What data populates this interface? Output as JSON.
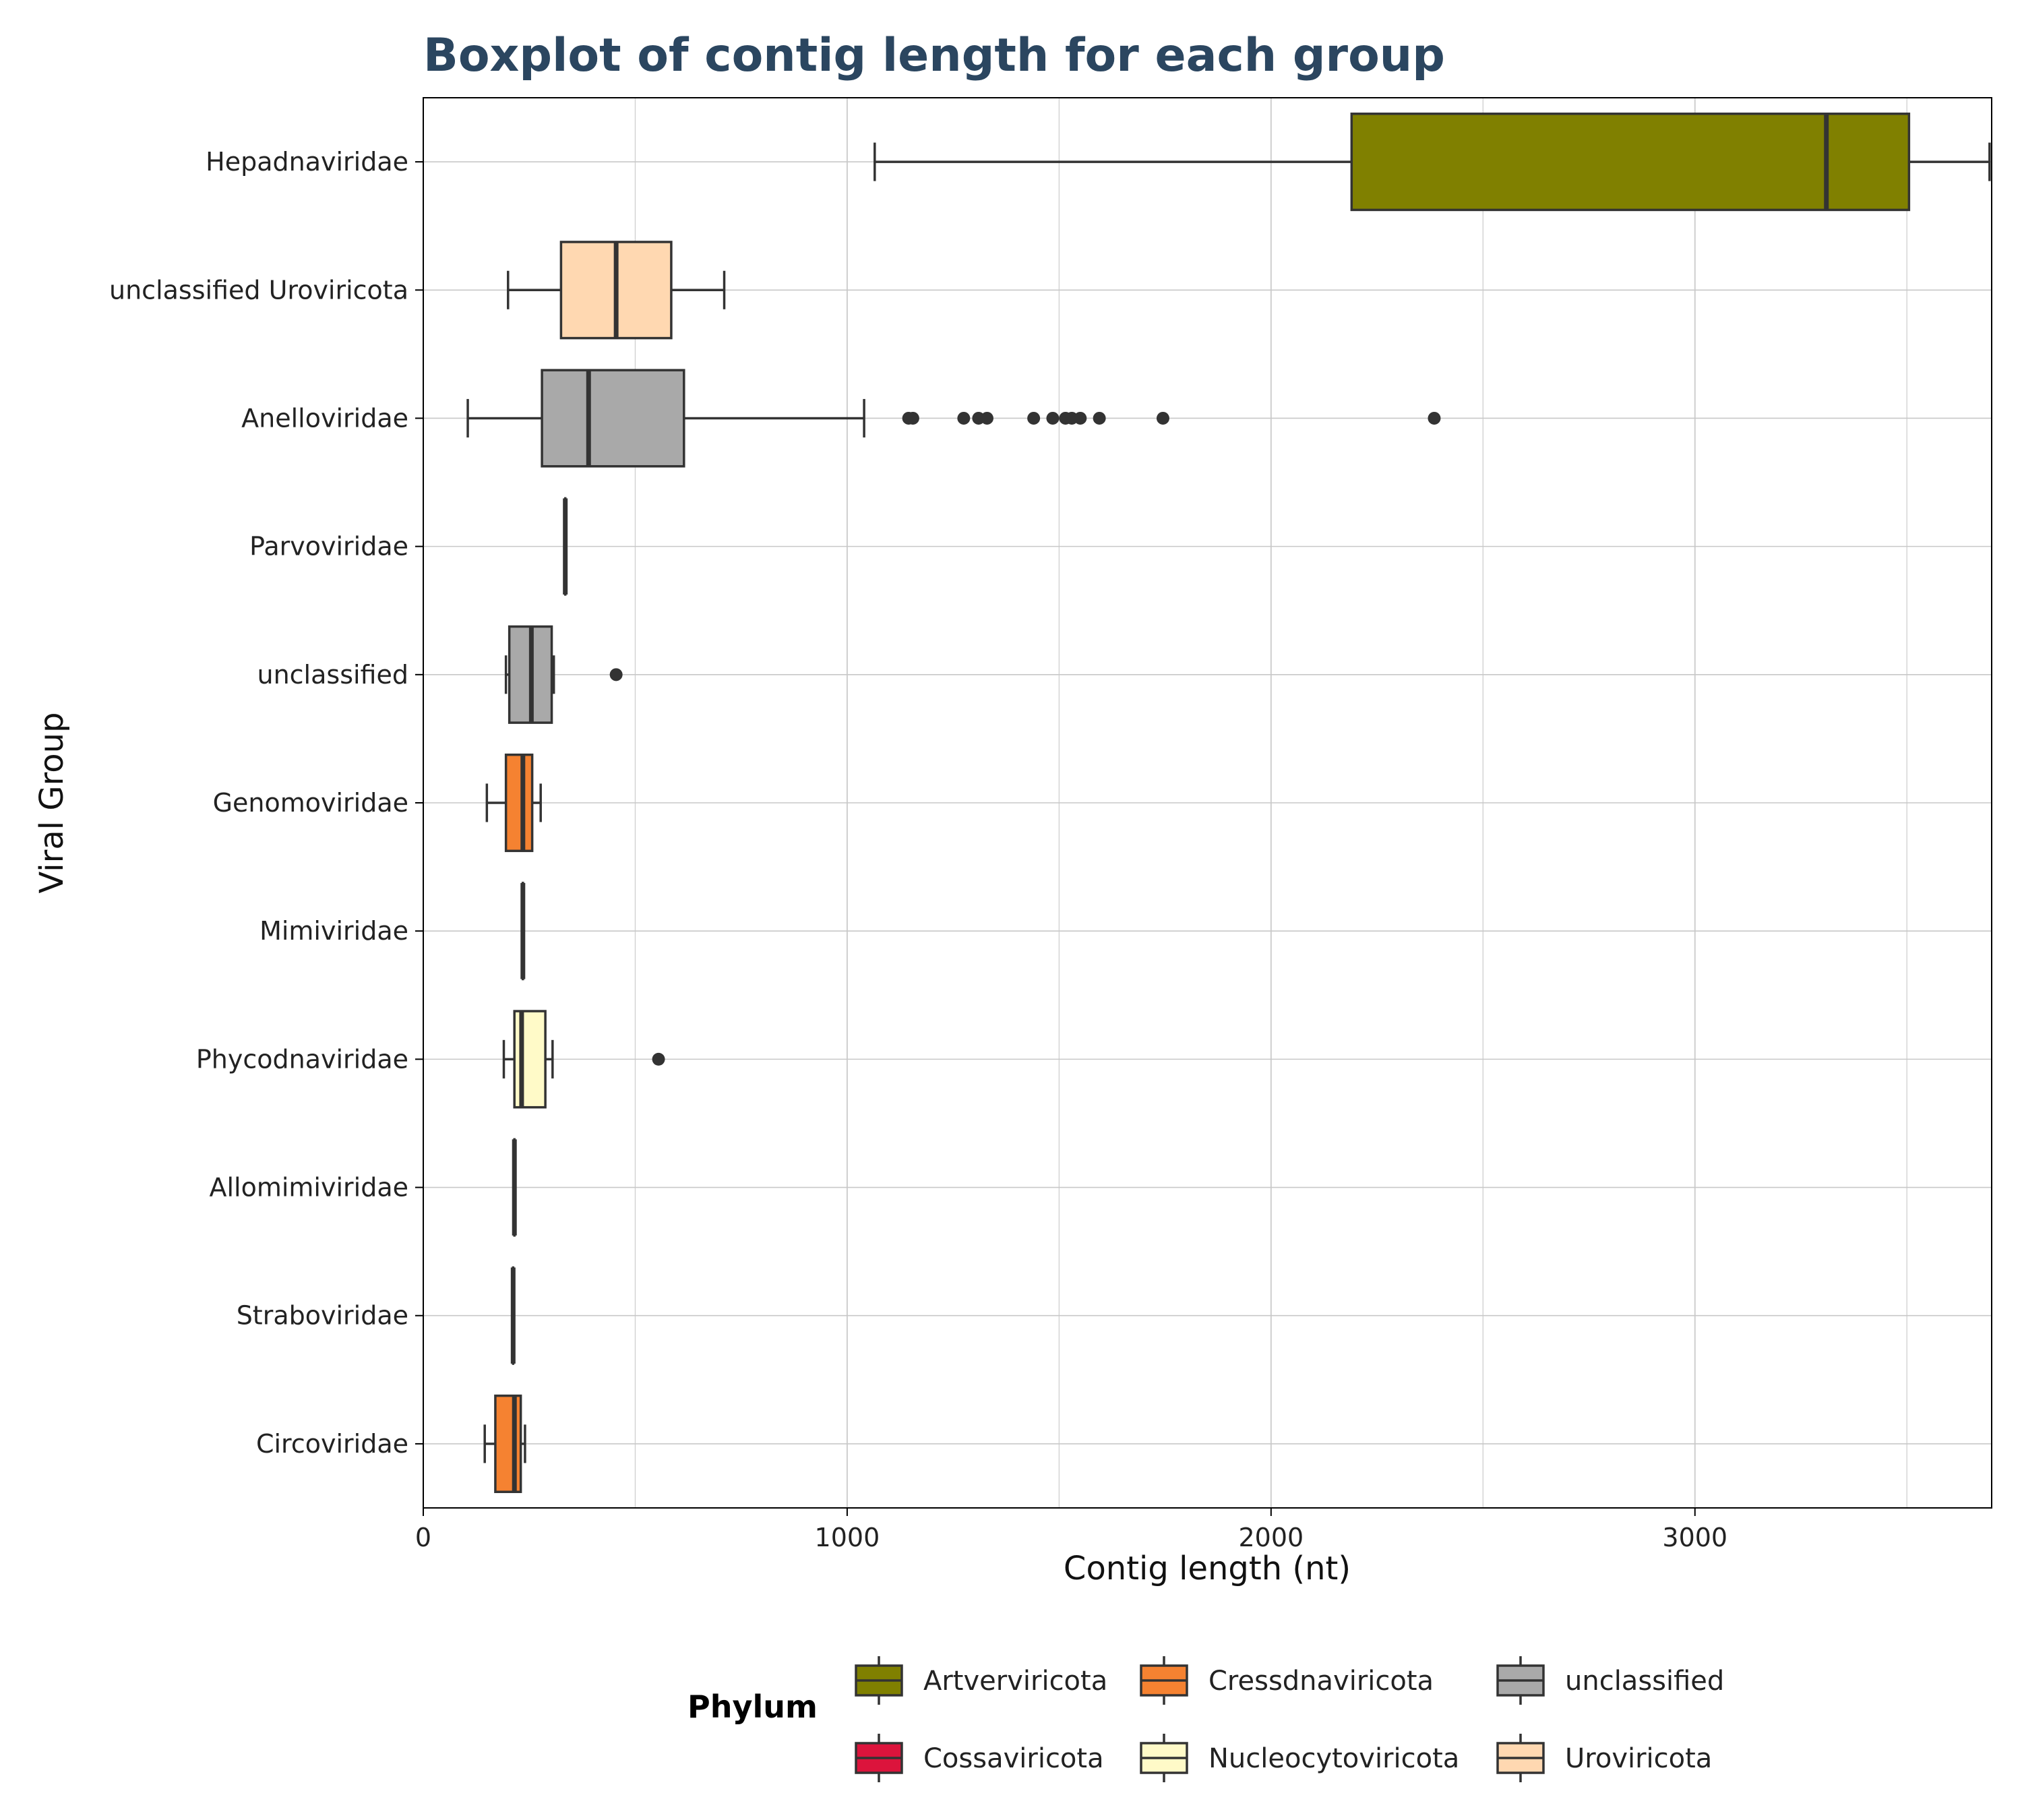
{
  "chart_data": {
    "type": "boxplot",
    "title": "Boxplot of contig length for each group",
    "xlabel": "Contig length (nt)",
    "ylabel": "Viral Group",
    "xlim": [
      0,
      3700
    ],
    "xticks": [
      0,
      1000,
      2000,
      3000
    ],
    "grid": true,
    "orientation": "horizontal",
    "legend": {
      "title": "Phylum",
      "position": "bottom",
      "items": [
        {
          "label": "Artverviricota",
          "color": "#808000"
        },
        {
          "label": "Cossaviricota",
          "color": "#dc143c"
        },
        {
          "label": "Cressdnaviricota",
          "color": "#f58231"
        },
        {
          "label": "Nucleocytoviricota",
          "color": "#fffac8"
        },
        {
          "label": "unclassified",
          "color": "#a9a9a9"
        },
        {
          "label": "Uroviricota",
          "color": "#ffd8b1"
        }
      ]
    },
    "groups": [
      {
        "name": "Hepadnaviridae",
        "phylum": "Artverviricota",
        "color": "#808000",
        "whisker_low": 1065,
        "q1": 2190,
        "median": 3310,
        "q3": 3505,
        "whisker_high": 3695,
        "outliers": []
      },
      {
        "name": "unclassified Uroviricota",
        "phylum": "Uroviricota",
        "color": "#ffd8b1",
        "whisker_low": 200,
        "q1": 325,
        "median": 455,
        "q3": 585,
        "whisker_high": 710,
        "outliers": []
      },
      {
        "name": "Anelloviridae",
        "phylum": "unclassified",
        "color": "#a9a9a9",
        "whisker_low": 105,
        "q1": 280,
        "median": 390,
        "q3": 615,
        "whisker_high": 1040,
        "outliers": [
          1145,
          1155,
          1275,
          1310,
          1330,
          1440,
          1485,
          1515,
          1530,
          1550,
          1595,
          1745,
          2385
        ]
      },
      {
        "name": "Parvoviridae",
        "phylum": "Cossaviricota",
        "color": "#dc143c",
        "whisker_low": 335,
        "q1": 335,
        "median": 335,
        "q3": 335,
        "whisker_high": 335,
        "outliers": []
      },
      {
        "name": "unclassified",
        "phylum": "unclassified",
        "color": "#a9a9a9",
        "whisker_low": 195,
        "q1": 203,
        "median": 255,
        "q3": 303,
        "whisker_high": 308,
        "outliers": [
          455
        ]
      },
      {
        "name": "Genomoviridae",
        "phylum": "Cressdnaviricota",
        "color": "#f58231",
        "whisker_low": 150,
        "q1": 195,
        "median": 235,
        "q3": 257,
        "whisker_high": 277,
        "outliers": []
      },
      {
        "name": "Mimiviridae",
        "phylum": "Nucleocytoviricota",
        "color": "#fffac8",
        "whisker_low": 235,
        "q1": 235,
        "median": 235,
        "q3": 235,
        "whisker_high": 235,
        "outliers": []
      },
      {
        "name": "Phycodnaviridae",
        "phylum": "Nucleocytoviricota",
        "color": "#fffac8",
        "whisker_low": 190,
        "q1": 215,
        "median": 232,
        "q3": 288,
        "whisker_high": 305,
        "outliers": [
          555
        ]
      },
      {
        "name": "Allomimiviridae",
        "phylum": "Nucleocytoviricota",
        "color": "#fffac8",
        "whisker_low": 215,
        "q1": 215,
        "median": 215,
        "q3": 215,
        "whisker_high": 215,
        "outliers": []
      },
      {
        "name": "Straboviridae",
        "phylum": "Uroviricota",
        "color": "#ffd8b1",
        "whisker_low": 212,
        "q1": 212,
        "median": 212,
        "q3": 212,
        "whisker_high": 212,
        "outliers": []
      },
      {
        "name": "Circoviridae",
        "phylum": "Cressdnaviricota",
        "color": "#f58231",
        "whisker_low": 145,
        "q1": 170,
        "median": 215,
        "q3": 230,
        "whisker_high": 240,
        "outliers": []
      }
    ]
  }
}
